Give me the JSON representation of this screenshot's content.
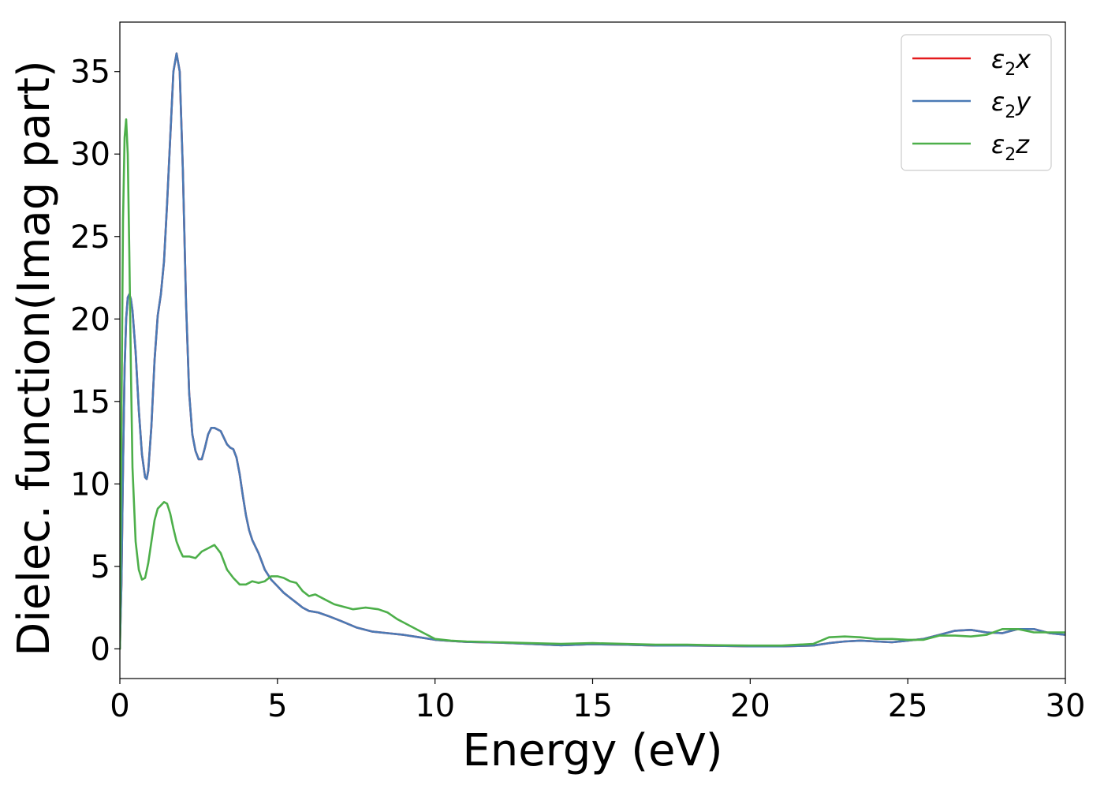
{
  "chart_data": {
    "type": "line",
    "xlabel": "Energy (eV)",
    "ylabel": "Dielec. function(Imag part)",
    "xlim": [
      0,
      30
    ],
    "ylim": [
      -1.8,
      38
    ],
    "x_ticks": [
      0,
      5,
      10,
      15,
      20,
      25,
      30
    ],
    "y_ticks": [
      0,
      5,
      10,
      15,
      20,
      25,
      30,
      35
    ],
    "grid": false,
    "legend_position": "top-right",
    "series": [
      {
        "name": "ε2x",
        "legend_base": "ε",
        "legend_sub": "2",
        "legend_var": "x",
        "color": "#e41a1c",
        "x": [
          0,
          0.05,
          0.1,
          0.15,
          0.2,
          0.25,
          0.3,
          0.35,
          0.4,
          0.5,
          0.6,
          0.7,
          0.8,
          0.85,
          0.9,
          1.0,
          1.1,
          1.2,
          1.3,
          1.4,
          1.5,
          1.6,
          1.7,
          1.8,
          1.9,
          2.0,
          2.1,
          2.2,
          2.3,
          2.4,
          2.5,
          2.6,
          2.7,
          2.8,
          2.9,
          3.0,
          3.1,
          3.2,
          3.3,
          3.4,
          3.5,
          3.6,
          3.7,
          3.8,
          3.9,
          4.0,
          4.1,
          4.2,
          4.3,
          4.4,
          4.5,
          4.6,
          4.7,
          4.8,
          5.0,
          5.2,
          5.4,
          5.6,
          5.8,
          6.0,
          6.3,
          6.6,
          7.0,
          7.5,
          8.0,
          8.5,
          9.0,
          9.5,
          10.0,
          10.5,
          11.0,
          12.0,
          13.0,
          14.0,
          15.0,
          16.0,
          17.0,
          18.0,
          19.0,
          20.0,
          21.0,
          22.0,
          22.5,
          23.0,
          23.5,
          24.0,
          24.5,
          25.0,
          25.5,
          26.0,
          26.5,
          27.0,
          27.5,
          28.0,
          28.5,
          29.0,
          29.5,
          30.0
        ],
        "values": [
          0,
          4,
          11,
          17,
          20,
          21.3,
          21.5,
          21.2,
          20.5,
          18,
          14.5,
          11.8,
          10.4,
          10.3,
          10.8,
          13.5,
          17.5,
          20.2,
          21.5,
          23.5,
          27,
          31,
          35,
          36.1,
          35,
          29,
          21,
          15.5,
          13,
          12,
          11.5,
          11.5,
          12.2,
          13,
          13.4,
          13.4,
          13.3,
          13.2,
          12.8,
          12.4,
          12.2,
          12.1,
          11.6,
          10.6,
          9.3,
          8.1,
          7.2,
          6.6,
          6.2,
          5.8,
          5.3,
          4.8,
          4.5,
          4.2,
          3.8,
          3.4,
          3.1,
          2.8,
          2.5,
          2.3,
          2.2,
          2.0,
          1.7,
          1.3,
          1.05,
          0.95,
          0.85,
          0.7,
          0.55,
          0.48,
          0.42,
          0.38,
          0.3,
          0.22,
          0.28,
          0.25,
          0.2,
          0.2,
          0.18,
          0.15,
          0.15,
          0.2,
          0.35,
          0.45,
          0.5,
          0.45,
          0.4,
          0.5,
          0.6,
          0.85,
          1.1,
          1.15,
          1.0,
          0.95,
          1.2,
          1.2,
          0.95,
          0.85
        ]
      },
      {
        "name": "ε2y",
        "legend_base": "ε",
        "legend_sub": "2",
        "legend_var": "y",
        "color": "#4a7ab5",
        "x": [
          0,
          0.05,
          0.1,
          0.15,
          0.2,
          0.25,
          0.3,
          0.35,
          0.4,
          0.5,
          0.6,
          0.7,
          0.8,
          0.85,
          0.9,
          1.0,
          1.1,
          1.2,
          1.3,
          1.4,
          1.5,
          1.6,
          1.7,
          1.8,
          1.9,
          2.0,
          2.1,
          2.2,
          2.3,
          2.4,
          2.5,
          2.6,
          2.7,
          2.8,
          2.9,
          3.0,
          3.1,
          3.2,
          3.3,
          3.4,
          3.5,
          3.6,
          3.7,
          3.8,
          3.9,
          4.0,
          4.1,
          4.2,
          4.3,
          4.4,
          4.5,
          4.6,
          4.7,
          4.8,
          5.0,
          5.2,
          5.4,
          5.6,
          5.8,
          6.0,
          6.3,
          6.6,
          7.0,
          7.5,
          8.0,
          8.5,
          9.0,
          9.5,
          10.0,
          10.5,
          11.0,
          12.0,
          13.0,
          14.0,
          15.0,
          16.0,
          17.0,
          18.0,
          19.0,
          20.0,
          21.0,
          22.0,
          22.5,
          23.0,
          23.5,
          24.0,
          24.5,
          25.0,
          25.5,
          26.0,
          26.5,
          27.0,
          27.5,
          28.0,
          28.5,
          29.0,
          29.5,
          30.0
        ],
        "values": [
          0,
          4,
          11,
          17,
          20,
          21.3,
          21.5,
          21.2,
          20.5,
          18,
          14.5,
          11.8,
          10.4,
          10.3,
          10.8,
          13.5,
          17.5,
          20.2,
          21.5,
          23.5,
          27,
          31,
          35,
          36.1,
          35,
          29,
          21,
          15.5,
          13,
          12,
          11.5,
          11.5,
          12.2,
          13,
          13.4,
          13.4,
          13.3,
          13.2,
          12.8,
          12.4,
          12.2,
          12.1,
          11.6,
          10.6,
          9.3,
          8.1,
          7.2,
          6.6,
          6.2,
          5.8,
          5.3,
          4.8,
          4.5,
          4.2,
          3.8,
          3.4,
          3.1,
          2.8,
          2.5,
          2.3,
          2.2,
          2.0,
          1.7,
          1.3,
          1.05,
          0.95,
          0.85,
          0.7,
          0.55,
          0.48,
          0.42,
          0.38,
          0.3,
          0.22,
          0.28,
          0.25,
          0.2,
          0.2,
          0.18,
          0.15,
          0.15,
          0.2,
          0.35,
          0.45,
          0.5,
          0.45,
          0.4,
          0.5,
          0.6,
          0.85,
          1.1,
          1.15,
          1.0,
          0.95,
          1.2,
          1.2,
          0.95,
          0.85
        ]
      },
      {
        "name": "ε2z",
        "legend_base": "ε",
        "legend_sub": "2",
        "legend_var": "z",
        "color": "#4daf4a",
        "x": [
          0,
          0.05,
          0.1,
          0.15,
          0.2,
          0.25,
          0.3,
          0.35,
          0.4,
          0.5,
          0.6,
          0.7,
          0.8,
          0.9,
          1.0,
          1.1,
          1.2,
          1.3,
          1.4,
          1.5,
          1.6,
          1.7,
          1.8,
          1.9,
          2.0,
          2.2,
          2.4,
          2.6,
          2.8,
          3.0,
          3.2,
          3.4,
          3.6,
          3.8,
          4.0,
          4.2,
          4.4,
          4.6,
          4.8,
          5.0,
          5.2,
          5.4,
          5.6,
          5.8,
          6.0,
          6.2,
          6.5,
          6.8,
          7.0,
          7.4,
          7.8,
          8.2,
          8.5,
          8.8,
          9.2,
          9.6,
          10.0,
          10.5,
          11.0,
          12.0,
          13.0,
          14.0,
          15.0,
          16.0,
          17.0,
          18.0,
          19.0,
          20.0,
          21.0,
          22.0,
          22.5,
          23.0,
          23.5,
          24.0,
          24.5,
          25.0,
          25.5,
          26.0,
          26.5,
          27.0,
          27.5,
          28.0,
          28.5,
          29.0,
          29.5,
          30.0
        ],
        "values": [
          0,
          14,
          26,
          31,
          32.1,
          30,
          24,
          17,
          11,
          6.5,
          4.8,
          4.2,
          4.3,
          5.2,
          6.5,
          7.8,
          8.5,
          8.7,
          8.9,
          8.8,
          8.2,
          7.3,
          6.5,
          6.0,
          5.6,
          5.6,
          5.5,
          5.9,
          6.1,
          6.3,
          5.8,
          4.8,
          4.3,
          3.9,
          3.9,
          4.1,
          4.0,
          4.1,
          4.4,
          4.4,
          4.3,
          4.1,
          4.0,
          3.5,
          3.2,
          3.3,
          3.0,
          2.7,
          2.6,
          2.4,
          2.5,
          2.4,
          2.2,
          1.8,
          1.4,
          1.0,
          0.6,
          0.5,
          0.45,
          0.4,
          0.35,
          0.3,
          0.35,
          0.3,
          0.25,
          0.25,
          0.22,
          0.2,
          0.2,
          0.3,
          0.7,
          0.75,
          0.7,
          0.6,
          0.6,
          0.55,
          0.55,
          0.8,
          0.8,
          0.75,
          0.85,
          1.2,
          1.2,
          1.0,
          1.0,
          1.0
        ]
      }
    ]
  }
}
